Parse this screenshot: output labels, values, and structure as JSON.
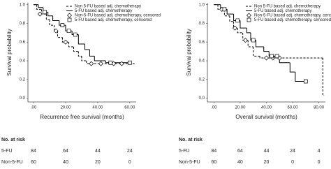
{
  "chart_data": [
    {
      "type": "step",
      "x_label": "Recurrence free survival (months)",
      "y_label": "Survival probability",
      "xlim": [
        -3.5,
        64
      ],
      "ylim": [
        -0.04,
        1.02
      ],
      "xticks": [
        {
          "value": 0,
          "label": ".00"
        },
        {
          "value": 20,
          "label": "20.00"
        },
        {
          "value": 40,
          "label": "40.00"
        },
        {
          "value": 60,
          "label": "60.00"
        }
      ],
      "yticks": [
        {
          "value": 0,
          "label": "0.0"
        },
        {
          "value": 0.2,
          "label": "0.2"
        },
        {
          "value": 0.4,
          "label": "0.4"
        },
        {
          "value": 0.6,
          "label": "0.6"
        },
        {
          "value": 0.8,
          "label": "0.8"
        },
        {
          "value": 1,
          "label": "1.0"
        }
      ],
      "series": [
        {
          "name": "Non 5-FU based adj. chemotherapy",
          "color": "#000000",
          "style": "step",
          "dash": true,
          "x": [
            0,
            2,
            5,
            8,
            10,
            13,
            15,
            18,
            22,
            25,
            28,
            30,
            33,
            63
          ],
          "values": [
            1,
            0.95,
            0.9,
            0.84,
            0.78,
            0.72,
            0.65,
            0.6,
            0.55,
            0.5,
            0.45,
            0.4,
            0.37,
            0.37
          ]
        },
        {
          "name": "5-FU based adj. chemotherapy",
          "color": "#000000",
          "style": "step",
          "dash": false,
          "x": [
            0,
            3,
            6,
            9,
            12,
            16,
            20,
            24,
            28,
            32,
            35,
            38,
            45,
            60
          ],
          "values": [
            1,
            0.97,
            0.92,
            0.88,
            0.83,
            0.78,
            0.72,
            0.68,
            0.58,
            0.52,
            0.45,
            0.4,
            0.38,
            0.38
          ]
        },
        {
          "name": "Non-5-FU based adj. chemotherapy, censored",
          "color": "#000000",
          "style": "marker",
          "marker": "diamond",
          "x": [
            4,
            14,
            20,
            36,
            42,
            50,
            55
          ],
          "values": [
            0.9,
            0.72,
            0.6,
            0.37,
            0.37,
            0.37,
            0.37
          ]
        },
        {
          "name": "5-FU based adj. chemotherapy, censored",
          "color": "#000000",
          "style": "marker",
          "marker": "square",
          "x": [
            7,
            18,
            22,
            26,
            48,
            60
          ],
          "values": [
            0.92,
            0.78,
            0.72,
            0.68,
            0.38,
            0.38
          ]
        }
      ],
      "at_risk": {
        "title": "No. at risk",
        "rows": [
          {
            "name": "5-FU",
            "values": [
              84,
              64,
              44,
              24
            ]
          },
          {
            "name": "Non-5-FU",
            "values": [
              60,
              40,
              20,
              0
            ]
          }
        ]
      }
    },
    {
      "type": "step",
      "x_label": "Overall survival (months)",
      "y_label": "Survival probability",
      "xlim": [
        -5,
        85
      ],
      "ylim": [
        -0.04,
        1.02
      ],
      "xticks": [
        {
          "value": 0,
          "label": ".00"
        },
        {
          "value": 20,
          "label": "20.00"
        },
        {
          "value": 40,
          "label": "40.00"
        },
        {
          "value": 60,
          "label": "60.00"
        },
        {
          "value": 80,
          "label": "80.00"
        }
      ],
      "yticks": [
        {
          "value": 0,
          "label": "0.0"
        },
        {
          "value": 0.2,
          "label": "0.2"
        },
        {
          "value": 0.4,
          "label": "0.4"
        },
        {
          "value": 0.6,
          "label": "0.6"
        },
        {
          "value": 0.8,
          "label": "0.8"
        },
        {
          "value": 1,
          "label": "1.0"
        }
      ],
      "series": [
        {
          "name": "Non 5-FU based adj. chemotherapy",
          "color": "#000000",
          "style": "step",
          "dash": true,
          "x": [
            0,
            3,
            8,
            12,
            15,
            18,
            22,
            26,
            30,
            35,
            83,
            84
          ],
          "values": [
            1,
            0.95,
            0.88,
            0.82,
            0.75,
            0.7,
            0.62,
            0.55,
            0.45,
            0.43,
            0.03,
            0.03
          ]
        },
        {
          "name": "5-FU based adj. chemotherapy",
          "color": "#000000",
          "style": "step",
          "dash": false,
          "x": [
            0,
            5,
            10,
            15,
            20,
            25,
            28,
            32,
            38,
            42,
            50,
            58,
            62,
            70
          ],
          "values": [
            1,
            0.95,
            0.9,
            0.83,
            0.75,
            0.7,
            0.62,
            0.55,
            0.5,
            0.45,
            0.38,
            0.28,
            0.18,
            0.18
          ]
        },
        {
          "name": "Non-5-FU based adj. chemotherapy, censored",
          "color": "#000000",
          "style": "marker",
          "marker": "diamond",
          "x": [
            6,
            16,
            24,
            40,
            45,
            50
          ],
          "values": [
            0.95,
            0.75,
            0.62,
            0.43,
            0.43,
            0.43
          ]
        },
        {
          "name": "5-FU based adj. chemotherapy, censored",
          "color": "#000000",
          "style": "marker",
          "marker": "square",
          "x": [
            8,
            18,
            30,
            44,
            48,
            70
          ],
          "values": [
            0.95,
            0.83,
            0.62,
            0.45,
            0.45,
            0.18
          ]
        }
      ],
      "at_risk": {
        "title": "No. at risk",
        "rows": [
          {
            "name": "5-FU",
            "values": [
              84,
              64,
              44,
              24,
              4
            ]
          },
          {
            "name": "Non-5-FU",
            "values": [
              60,
              40,
              20,
              0,
              0
            ]
          }
        ]
      }
    }
  ]
}
